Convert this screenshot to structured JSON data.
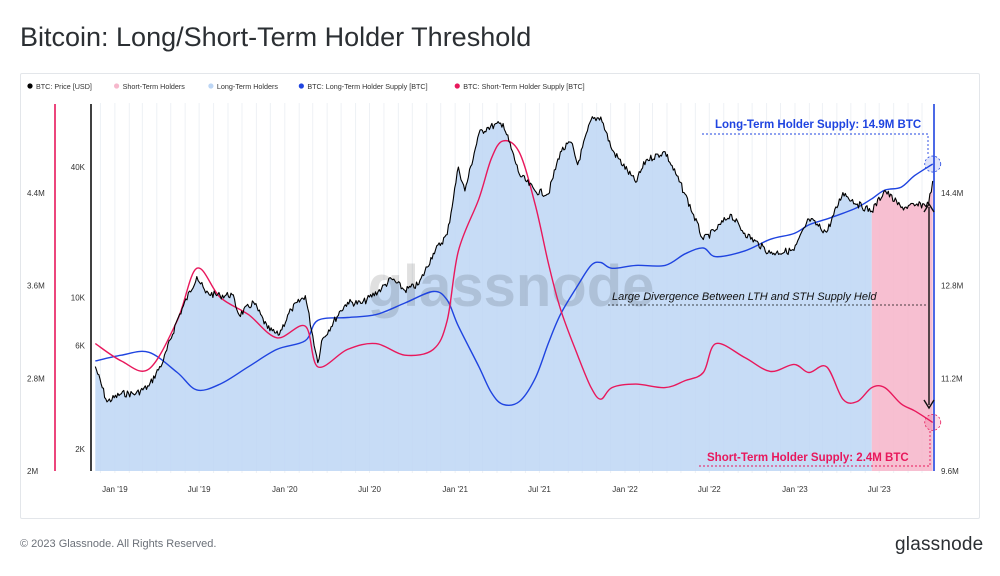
{
  "page": {
    "title": "Bitcoin: Long/Short-Term Holder Threshold",
    "copyright": "© 2023 Glassnode. All Rights Reserved.",
    "logo": "glassnode",
    "watermark": "glassnode"
  },
  "chart_data": {
    "type": "line",
    "title": "Bitcoin: Long/Short-Term Holder Threshold",
    "legend": {
      "placement": "top-left",
      "items": [
        {
          "name": "BTC: Price [USD]",
          "color": "#000000"
        },
        {
          "name": "Short-Term Holders",
          "color": "#f6b8cc"
        },
        {
          "name": "Long-Term Holders",
          "color": "#bdd6f5"
        },
        {
          "name": "BTC: Long-Term Holder Supply [BTC]",
          "color": "#1f44e0"
        },
        {
          "name": "BTC: Short-Term Holder Supply [BTC]",
          "color": "#e8185c"
        }
      ]
    },
    "x_ticks": [
      "Jan '19",
      "Jul '19",
      "Jan '20",
      "Jul '20",
      "Jan '21",
      "Jul '21",
      "Jan '22",
      "Jul '22",
      "Jan '23",
      "Jul '23"
    ],
    "y_left_sth": {
      "ticks": [
        "2M",
        "2.8M",
        "3.6M",
        "4.4M"
      ],
      "values": [
        2.0,
        2.8,
        3.6,
        4.4
      ],
      "unit": "M BTC",
      "color": "#e8185c"
    },
    "y_left_price": {
      "ticks": [
        "2K",
        "6K",
        "10K",
        "40K"
      ],
      "values": [
        2000,
        6000,
        10000,
        40000
      ],
      "scale": "log"
    },
    "y_right_lth": {
      "ticks": [
        "9.6M",
        "11.2M",
        "12.8M",
        "14.4M"
      ],
      "values": [
        9.6,
        11.2,
        12.8,
        14.4
      ],
      "unit": "M BTC",
      "color": "#1f44e0"
    },
    "x_range": [
      "2018-11-15",
      "2023-10-31"
    ],
    "shading": {
      "sth_region_start": "2023-06-15",
      "sth_region_end": "2023-10-31",
      "sth_color": "#f6b8cc",
      "lth_color": "#bdd6f5"
    },
    "grid": true,
    "series": [
      {
        "name": "BTC: Price [USD]",
        "color": "#000000",
        "points": [
          [
            "2018-11-20",
            4800
          ],
          [
            "2018-12-15",
            3300
          ],
          [
            "2019-01-15",
            3600
          ],
          [
            "2019-02-15",
            3600
          ],
          [
            "2019-03-15",
            3900
          ],
          [
            "2019-04-15",
            5100
          ],
          [
            "2019-05-15",
            7900
          ],
          [
            "2019-06-26",
            12500
          ],
          [
            "2019-07-15",
            10500
          ],
          [
            "2019-08-15",
            10200
          ],
          [
            "2019-09-10",
            10300
          ],
          [
            "2019-09-25",
            8300
          ],
          [
            "2019-10-26",
            9500
          ],
          [
            "2019-11-25",
            7200
          ],
          [
            "2019-12-18",
            6700
          ],
          [
            "2020-01-15",
            8800
          ],
          [
            "2020-02-14",
            10200
          ],
          [
            "2020-03-12",
            5000
          ],
          [
            "2020-03-20",
            6300
          ],
          [
            "2020-04-30",
            8700
          ],
          [
            "2020-05-15",
            9500
          ],
          [
            "2020-06-15",
            9400
          ],
          [
            "2020-07-27",
            11000
          ],
          [
            "2020-08-17",
            12200
          ],
          [
            "2020-09-15",
            10800
          ],
          [
            "2020-10-15",
            11500
          ],
          [
            "2020-11-15",
            16000
          ],
          [
            "2020-12-15",
            19500
          ],
          [
            "2021-01-08",
            40000
          ],
          [
            "2021-01-22",
            31000
          ],
          [
            "2021-02-21",
            57000
          ],
          [
            "2021-03-13",
            61000
          ],
          [
            "2021-04-14",
            63500
          ],
          [
            "2021-05-19",
            37000
          ],
          [
            "2021-06-22",
            31000
          ],
          [
            "2021-07-20",
            30000
          ],
          [
            "2021-08-15",
            47000
          ],
          [
            "2021-09-07",
            52000
          ],
          [
            "2021-09-21",
            41000
          ],
          [
            "2021-10-20",
            66000
          ],
          [
            "2021-11-10",
            68000
          ],
          [
            "2021-12-04",
            48000
          ],
          [
            "2022-01-24",
            34000
          ],
          [
            "2022-02-15",
            43000
          ],
          [
            "2022-03-28",
            47000
          ],
          [
            "2022-05-10",
            30000
          ],
          [
            "2022-06-18",
            18500
          ],
          [
            "2022-07-15",
            20500
          ],
          [
            "2022-08-15",
            24200
          ],
          [
            "2022-09-15",
            19800
          ],
          [
            "2022-11-09",
            16000
          ],
          [
            "2022-12-30",
            16500
          ],
          [
            "2023-01-31",
            23000
          ],
          [
            "2023-03-10",
            20000
          ],
          [
            "2023-04-14",
            30500
          ],
          [
            "2023-05-15",
            27000
          ],
          [
            "2023-06-15",
            25000
          ],
          [
            "2023-07-13",
            31200
          ],
          [
            "2023-08-17",
            26000
          ],
          [
            "2023-09-15",
            26500
          ],
          [
            "2023-10-15",
            27000
          ],
          [
            "2023-10-24",
            34500
          ]
        ]
      },
      {
        "name": "BTC: Short-Term Holder Supply [BTC]",
        "color": "#e8185c",
        "points": [
          [
            "2018-11-20",
            3.1
          ],
          [
            "2019-01-15",
            2.95
          ],
          [
            "2019-03-15",
            2.88
          ],
          [
            "2019-05-15",
            3.3
          ],
          [
            "2019-06-26",
            3.75
          ],
          [
            "2019-08-15",
            3.5
          ],
          [
            "2019-10-15",
            3.35
          ],
          [
            "2019-12-15",
            3.15
          ],
          [
            "2020-02-14",
            3.25
          ],
          [
            "2020-03-12",
            2.9
          ],
          [
            "2020-05-15",
            3.05
          ],
          [
            "2020-07-15",
            3.1
          ],
          [
            "2020-09-15",
            3.0
          ],
          [
            "2020-11-15",
            3.05
          ],
          [
            "2020-12-15",
            3.3
          ],
          [
            "2021-01-08",
            3.9
          ],
          [
            "2021-02-21",
            4.35
          ],
          [
            "2021-03-20",
            4.7
          ],
          [
            "2021-04-14",
            4.85
          ],
          [
            "2021-05-19",
            4.75
          ],
          [
            "2021-06-22",
            4.3
          ],
          [
            "2021-07-20",
            3.8
          ],
          [
            "2021-08-15",
            3.4
          ],
          [
            "2021-09-21",
            3.0
          ],
          [
            "2021-10-20",
            2.72
          ],
          [
            "2021-11-10",
            2.62
          ],
          [
            "2021-12-04",
            2.72
          ],
          [
            "2022-01-24",
            2.75
          ],
          [
            "2022-03-28",
            2.72
          ],
          [
            "2022-05-10",
            2.78
          ],
          [
            "2022-06-18",
            2.85
          ],
          [
            "2022-07-15",
            3.1
          ],
          [
            "2022-09-15",
            2.98
          ],
          [
            "2022-11-09",
            2.86
          ],
          [
            "2022-12-30",
            2.92
          ],
          [
            "2023-01-31",
            2.85
          ],
          [
            "2023-03-10",
            2.9
          ],
          [
            "2023-04-14",
            2.62
          ],
          [
            "2023-05-15",
            2.6
          ],
          [
            "2023-06-15",
            2.72
          ],
          [
            "2023-07-13",
            2.72
          ],
          [
            "2023-08-17",
            2.58
          ],
          [
            "2023-09-15",
            2.52
          ],
          [
            "2023-10-24",
            2.42
          ]
        ]
      },
      {
        "name": "BTC: Long-Term Holder Supply [BTC]",
        "color": "#1f44e0",
        "points": [
          [
            "2018-11-20",
            11.5
          ],
          [
            "2019-01-15",
            11.6
          ],
          [
            "2019-03-15",
            11.65
          ],
          [
            "2019-05-15",
            11.3
          ],
          [
            "2019-06-26",
            11.0
          ],
          [
            "2019-08-15",
            11.1
          ],
          [
            "2019-10-15",
            11.4
          ],
          [
            "2019-12-15",
            11.7
          ],
          [
            "2020-02-14",
            11.85
          ],
          [
            "2020-03-12",
            12.2
          ],
          [
            "2020-05-15",
            12.25
          ],
          [
            "2020-07-15",
            12.3
          ],
          [
            "2020-09-15",
            12.5
          ],
          [
            "2020-11-15",
            12.7
          ],
          [
            "2020-12-15",
            12.55
          ],
          [
            "2021-01-08",
            12.1
          ],
          [
            "2021-02-21",
            11.4
          ],
          [
            "2021-03-20",
            10.95
          ],
          [
            "2021-04-14",
            10.75
          ],
          [
            "2021-05-19",
            10.8
          ],
          [
            "2021-06-22",
            11.2
          ],
          [
            "2021-07-20",
            11.8
          ],
          [
            "2021-08-15",
            12.3
          ],
          [
            "2021-09-21",
            12.8
          ],
          [
            "2021-10-20",
            13.15
          ],
          [
            "2021-11-10",
            13.2
          ],
          [
            "2021-12-04",
            13.1
          ],
          [
            "2022-01-24",
            13.15
          ],
          [
            "2022-03-28",
            13.15
          ],
          [
            "2022-05-10",
            13.35
          ],
          [
            "2022-06-18",
            13.45
          ],
          [
            "2022-07-15",
            13.3
          ],
          [
            "2022-09-15",
            13.4
          ],
          [
            "2022-11-09",
            13.6
          ],
          [
            "2022-12-30",
            13.7
          ],
          [
            "2023-01-31",
            13.85
          ],
          [
            "2023-03-10",
            13.95
          ],
          [
            "2023-04-14",
            14.05
          ],
          [
            "2023-05-15",
            14.15
          ],
          [
            "2023-06-15",
            14.3
          ],
          [
            "2023-07-13",
            14.45
          ],
          [
            "2023-08-17",
            14.5
          ],
          [
            "2023-09-15",
            14.7
          ],
          [
            "2023-10-24",
            14.9
          ]
        ]
      }
    ],
    "annotations": [
      {
        "text": "Long-Term Holder Supply: 14.9M BTC",
        "color": "#1f44e0"
      },
      {
        "text": "Short-Term Holder Supply: 2.4M BTC",
        "color": "#e8185c"
      },
      {
        "text": "Large Divergence Between LTH and STH Supply Held",
        "color": "#111111"
      }
    ]
  }
}
